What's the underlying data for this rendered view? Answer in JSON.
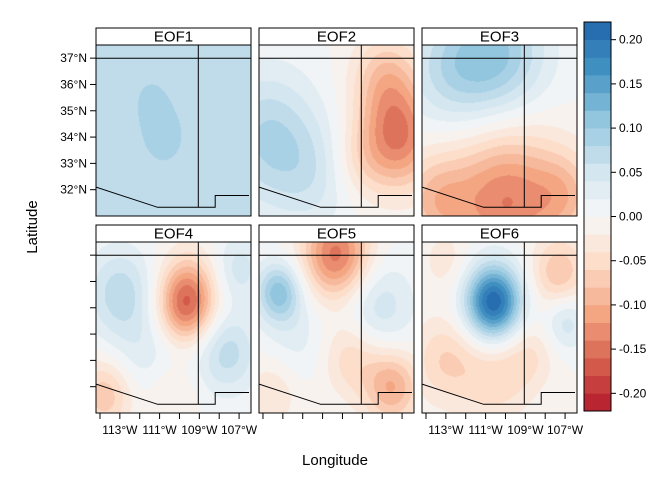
{
  "chart_data": {
    "type": "heatmap",
    "title": "",
    "xlabel": "Longitude",
    "ylabel": "Latitude",
    "xlim": [
      -114.2,
      -106.4
    ],
    "ylim": [
      31.0,
      37.5
    ],
    "x_ticks": [
      -113,
      -111,
      -109,
      -107
    ],
    "x_tick_labels": [
      "113°W",
      "111°W",
      "109°W",
      "107°W"
    ],
    "x_minor_ticks": [
      -114,
      -113,
      -112,
      -111,
      -110,
      -109,
      -108,
      -107
    ],
    "y_ticks": [
      32,
      33,
      34,
      35,
      36,
      37
    ],
    "y_tick_labels": [
      "32°N",
      "33°N",
      "34°N",
      "35°N",
      "36°N",
      "37°N"
    ],
    "colorbar": {
      "min": -0.22,
      "max": 0.22,
      "step": 0.02,
      "ticks": [
        -0.2,
        -0.15,
        -0.1,
        -0.05,
        0.0,
        0.05,
        0.1,
        0.15,
        0.2
      ],
      "tick_labels": [
        "-0.20",
        "-0.15",
        "-0.10",
        "-0.05",
        "0.00",
        "0.05",
        "0.10",
        "0.15",
        "0.20"
      ],
      "palette": [
        "#b2182b",
        "#d6604d",
        "#f4a582",
        "#fddbc7",
        "#f7f7f7",
        "#d1e5f0",
        "#92c5de",
        "#4393c3",
        "#2166ac"
      ]
    },
    "panels": [
      {
        "name": "EOF1",
        "base": 0.06,
        "features": [
          {
            "x": -110.8,
            "y": 34.0,
            "r": 1.3,
            "a": 0.025
          },
          {
            "x": -111.5,
            "y": 35.6,
            "r": 0.8,
            "a": 0.015
          }
        ]
      },
      {
        "name": "EOF2",
        "base": 0.0,
        "features": [
          {
            "x": -113.8,
            "y": 34.0,
            "r": 1.8,
            "a": 0.08
          },
          {
            "x": -111.5,
            "y": 32.5,
            "r": 1.5,
            "a": 0.04
          },
          {
            "x": -107.2,
            "y": 34.0,
            "r": 1.4,
            "a": -0.14
          },
          {
            "x": -107.8,
            "y": 36.3,
            "r": 1.2,
            "a": -0.07
          },
          {
            "x": -109.2,
            "y": 33.0,
            "r": 1.0,
            "a": -0.03
          }
        ]
      },
      {
        "name": "EOF3",
        "base": 0.0,
        "features": [
          {
            "x": -110.5,
            "y": 37.0,
            "r": 1.8,
            "a": 0.11
          },
          {
            "x": -113.0,
            "y": 36.5,
            "r": 1.5,
            "a": 0.05
          },
          {
            "x": -110.0,
            "y": 31.3,
            "r": 1.8,
            "a": -0.12
          },
          {
            "x": -113.5,
            "y": 31.6,
            "r": 1.3,
            "a": -0.08
          },
          {
            "x": -107.0,
            "y": 31.8,
            "r": 1.2,
            "a": -0.07
          },
          {
            "x": -110.0,
            "y": 33.6,
            "r": 2.0,
            "a": -0.03
          }
        ]
      },
      {
        "name": "EOF4",
        "base": 0.0,
        "features": [
          {
            "x": -109.7,
            "y": 35.0,
            "r": 1.0,
            "a": -0.14
          },
          {
            "x": -109.5,
            "y": 36.0,
            "r": 1.0,
            "a": -0.05
          },
          {
            "x": -113.0,
            "y": 35.6,
            "r": 1.2,
            "a": 0.07
          },
          {
            "x": -111.5,
            "y": 33.0,
            "r": 1.5,
            "a": 0.04
          },
          {
            "x": -107.6,
            "y": 33.3,
            "r": 1.1,
            "a": 0.07
          },
          {
            "x": -107.0,
            "y": 36.5,
            "r": 0.9,
            "a": 0.05
          },
          {
            "x": -113.7,
            "y": 31.7,
            "r": 1.0,
            "a": -0.08
          },
          {
            "x": -110.5,
            "y": 31.8,
            "r": 1.0,
            "a": -0.04
          }
        ]
      },
      {
        "name": "EOF5",
        "base": 0.0,
        "features": [
          {
            "x": -110.3,
            "y": 37.0,
            "r": 1.2,
            "a": -0.15
          },
          {
            "x": -113.2,
            "y": 35.6,
            "r": 0.8,
            "a": 0.11
          },
          {
            "x": -108.3,
            "y": 35.0,
            "r": 1.3,
            "a": 0.06
          },
          {
            "x": -112.2,
            "y": 33.8,
            "r": 1.3,
            "a": 0.03
          },
          {
            "x": -109.6,
            "y": 33.2,
            "r": 1.1,
            "a": -0.06
          },
          {
            "x": -107.5,
            "y": 32.0,
            "r": 1.0,
            "a": -0.1
          },
          {
            "x": -113.5,
            "y": 31.8,
            "r": 1.0,
            "a": -0.04
          }
        ]
      },
      {
        "name": "EOF6",
        "base": 0.0,
        "features": [
          {
            "x": -110.6,
            "y": 35.2,
            "r": 1.0,
            "a": 0.22
          },
          {
            "x": -107.3,
            "y": 36.3,
            "r": 1.0,
            "a": -0.08
          },
          {
            "x": -107.0,
            "y": 34.5,
            "r": 0.8,
            "a": 0.06
          },
          {
            "x": -108.8,
            "y": 33.3,
            "r": 1.0,
            "a": -0.04
          },
          {
            "x": -113.0,
            "y": 33.0,
            "r": 1.2,
            "a": -0.06
          },
          {
            "x": -110.5,
            "y": 32.3,
            "r": 1.2,
            "a": -0.05
          },
          {
            "x": -113.0,
            "y": 36.8,
            "r": 0.9,
            "a": -0.03
          }
        ]
      }
    ],
    "border_lines": [
      [
        [
          -114.2,
          37.0
        ],
        [
          -106.4,
          37.0
        ]
      ],
      [
        [
          -109.05,
          37.5
        ],
        [
          -109.05,
          31.33
        ]
      ],
      [
        [
          -114.2,
          32.1
        ],
        [
          -111.1,
          31.33
        ],
        [
          -108.2,
          31.33
        ],
        [
          -108.2,
          31.78
        ],
        [
          -106.5,
          31.78
        ]
      ]
    ]
  }
}
